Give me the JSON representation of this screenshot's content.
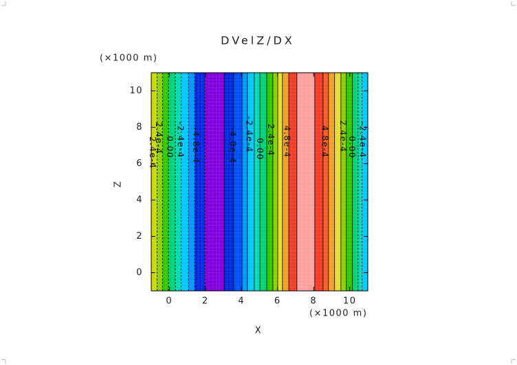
{
  "chart_data": {
    "type": "contour",
    "title": "DVelZ/DX",
    "x_label": "X",
    "y_label": "Z",
    "x_unit": "(×1000 m)",
    "y_unit": "(×1000 m)",
    "xlim": [
      -1,
      11
    ],
    "ylim": [
      -1,
      11
    ],
    "xticks": [
      0,
      2,
      4,
      6,
      8,
      10
    ],
    "yticks": [
      0,
      2,
      4,
      6,
      8,
      10
    ],
    "x_edges": [
      -1,
      -0.68,
      -0.38,
      -0.04,
      0.34,
      0.65,
      1.06,
      1.41,
      1.98,
      3.04,
      3.57,
      4.03,
      4.33,
      4.71,
      5.02,
      5.4,
      5.74,
      6.01,
      6.27,
      6.62,
      7.07,
      8.06,
      8.52,
      8.82,
      9.16,
      9.51,
      9.81,
      10.15,
      10.46,
      10.68,
      11
    ],
    "colors": [
      "#c8dc00",
      "#8cd200",
      "#32c800",
      "#00d278",
      "#00dcb4",
      "#00c8ff",
      "#0096ff",
      "#0028dc",
      "#8200dc",
      "#0028dc",
      "#0050ff",
      "#0096ff",
      "#00c8ff",
      "#00dcb4",
      "#00d278",
      "#32c800",
      "#8cd200",
      "#e6dc32",
      "#f0a028",
      "#f03c28",
      "#ffa0a0",
      "#f03c28",
      "#fa5a28",
      "#f0a028",
      "#e6dc32",
      "#8cd200",
      "#32c800",
      "#00d278",
      "#00dcb4",
      "#00c8ff"
    ],
    "contour_labels": [
      {
        "text": "2.4e-4",
        "x": -0.95,
        "y": 6.6
      },
      {
        "text": "2.4e-4",
        "x": -0.6,
        "y": 7.4
      },
      {
        "text": "0.00",
        "x": 0,
        "y": 6.9
      },
      {
        "text": "-2.4e-4",
        "x": 0.6,
        "y": 7.3
      },
      {
        "text": "-4.8e-4",
        "x": 1.45,
        "y": 7.0
      },
      {
        "text": "-4.8e-4",
        "x": 3.5,
        "y": 7.0
      },
      {
        "text": "-2.4e-4",
        "x": 4.4,
        "y": 7.6
      },
      {
        "text": "0.00",
        "x": 5.0,
        "y": 6.8
      },
      {
        "text": "2.4e-4",
        "x": 5.6,
        "y": 7.3
      },
      {
        "text": "4.8e-4",
        "x": 6.5,
        "y": 7.2
      },
      {
        "text": "4.8e-4",
        "x": 8.6,
        "y": 7.2
      },
      {
        "text": "2.4e-4",
        "x": 9.6,
        "y": 7.5
      },
      {
        "text": "0.00",
        "x": 10.1,
        "y": 6.9
      },
      {
        "text": "-2.4e-4",
        "x": 10.7,
        "y": 7.3
      }
    ]
  }
}
